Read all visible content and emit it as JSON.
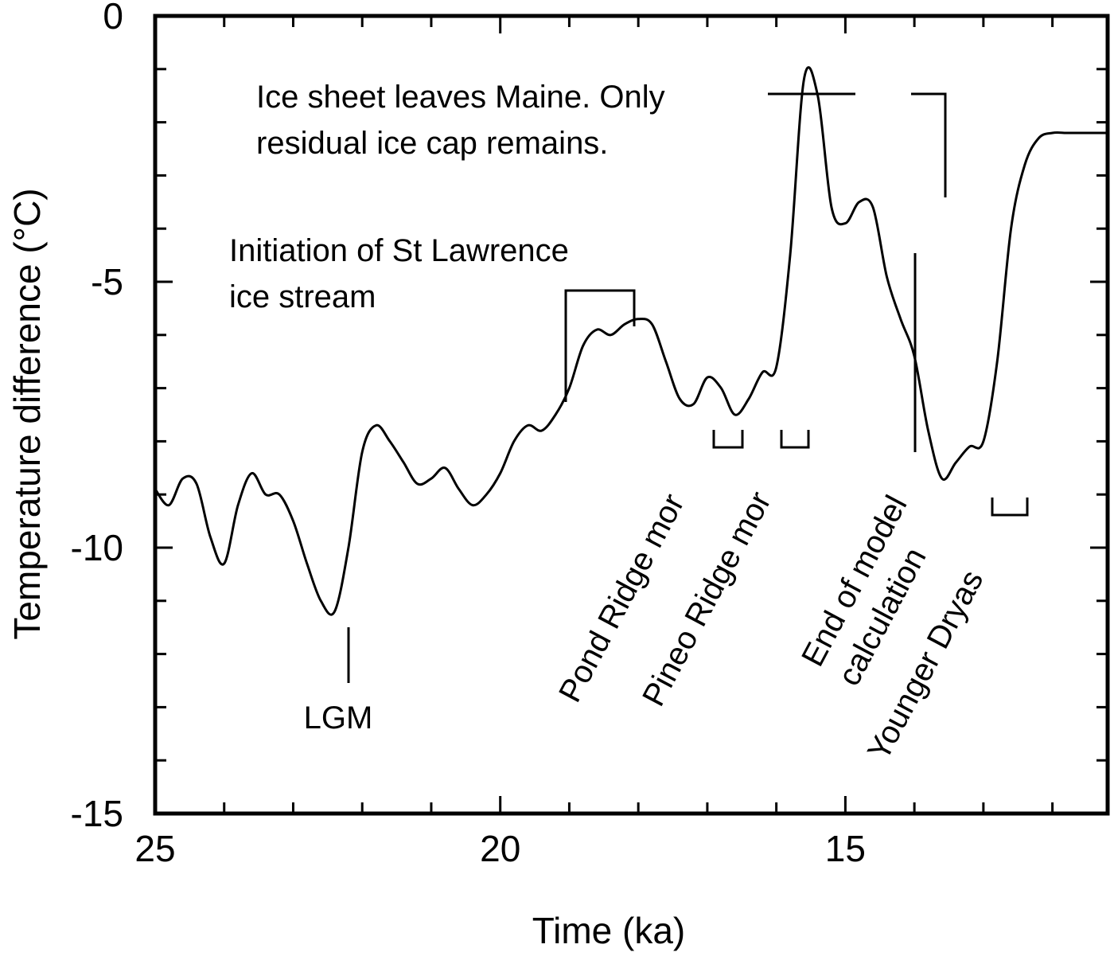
{
  "chart_data": {
    "type": "line",
    "title": "",
    "xlabel": "Time (ka)",
    "ylabel": "Temperature difference (°C)",
    "xlim": [
      25,
      11.2
    ],
    "ylim": [
      -15,
      0
    ],
    "x_reversed": true,
    "xticks": [
      25,
      20,
      15
    ],
    "yticks": [
      0,
      -5,
      -10,
      -15
    ],
    "grid": false,
    "series": [
      {
        "x": [
          25.0,
          24.8,
          24.6,
          24.4,
          24.2,
          24.0,
          23.8,
          23.6,
          23.4,
          23.2,
          23.0,
          22.8,
          22.6,
          22.4,
          22.2,
          22.0,
          21.8,
          21.6,
          21.4,
          21.2,
          21.0,
          20.8,
          20.6,
          20.4,
          20.2,
          20.0,
          19.8,
          19.6,
          19.4,
          19.2,
          19.0,
          18.8,
          18.6,
          18.4,
          18.2,
          18.0,
          17.8,
          17.6,
          17.4,
          17.2,
          17.0,
          16.8,
          16.6,
          16.4,
          16.2,
          16.0,
          15.8,
          15.6,
          15.4,
          15.2,
          15.0,
          14.8,
          14.6,
          14.4,
          14.2,
          14.0,
          13.8,
          13.6,
          13.4,
          13.2,
          13.0,
          12.8,
          12.6,
          12.4,
          12.2,
          12.0,
          11.8,
          11.6,
          11.4,
          11.2
        ],
        "y": [
          -8.9,
          -9.2,
          -8.7,
          -8.8,
          -9.8,
          -10.3,
          -9.2,
          -8.6,
          -9.0,
          -9.0,
          -9.5,
          -10.3,
          -11.0,
          -11.2,
          -10.0,
          -8.2,
          -7.7,
          -8.0,
          -8.4,
          -8.8,
          -8.7,
          -8.5,
          -8.9,
          -9.2,
          -9.0,
          -8.6,
          -8.0,
          -7.7,
          -7.8,
          -7.5,
          -7.0,
          -6.2,
          -5.9,
          -6.0,
          -5.8,
          -5.7,
          -5.8,
          -6.5,
          -7.2,
          -7.3,
          -6.8,
          -7.0,
          -7.5,
          -7.2,
          -6.7,
          -6.6,
          -4.5,
          -1.2,
          -1.5,
          -3.6,
          -3.9,
          -3.5,
          -3.6,
          -4.9,
          -5.7,
          -6.4,
          -7.8,
          -8.7,
          -8.4,
          -8.1,
          -8.0,
          -6.5,
          -4.0,
          -2.8,
          -2.3,
          -2.2,
          -2.2,
          -2.2,
          -2.2,
          -2.2
        ]
      }
    ],
    "annotations": [
      {
        "id": "lgm",
        "text_lines": [
          "LGM"
        ]
      },
      {
        "id": "st-lawrence",
        "text_lines": [
          "Initiation of St  Lawrence",
          "ice stream"
        ]
      },
      {
        "id": "maine",
        "text_lines": [
          "Ice sheet leaves Maine. Only",
          "residual ice cap remains."
        ]
      },
      {
        "id": "pond-ridge",
        "text_lines": [
          "Pond Ridge mor"
        ]
      },
      {
        "id": "pineo-ridge",
        "text_lines": [
          "Pineo Ridge mor"
        ]
      },
      {
        "id": "end-model",
        "text_lines": [
          "End of model",
          "calculation"
        ]
      },
      {
        "id": "younger-dryas",
        "text_lines": [
          "Younger Dryas"
        ]
      }
    ]
  }
}
